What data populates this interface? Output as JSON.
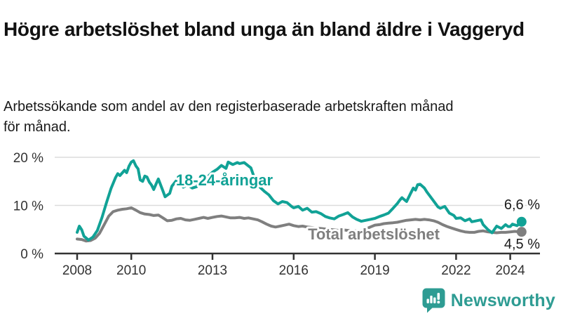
{
  "header": {
    "title": "Högre arbetslöshet bland unga än bland äldre i Vaggeryd",
    "subtitle": "Arbetssökande som andel av den registerbaserade arbetskraften månad för månad."
  },
  "footer": {
    "brand": "Newsworthy"
  },
  "colors": {
    "accent_teal": "#11a296",
    "series_gray": "#7f7f7f",
    "axis_text": "#333333",
    "gridline": "#dcdcdc",
    "axis_line": "#333333",
    "value_label_text": "#1a1a1a",
    "logo_teal": "#2e9c93"
  },
  "chart_data": {
    "type": "line",
    "title": "Högre arbetslöshet bland unga än bland äldre i Vaggeryd",
    "subtitle": "Arbetssökande som andel av den registerbaserade arbetskraften månad för månad.",
    "xlabel": "",
    "ylabel": "",
    "ylim": [
      0,
      20
    ],
    "xlim": [
      2007.2,
      2025.2
    ],
    "grid": true,
    "legend_position": "inline-labels",
    "y_ticks": [
      {
        "value": 0,
        "label": "0 %"
      },
      {
        "value": 10,
        "label": "10 %"
      },
      {
        "value": 20,
        "label": "20 %"
      }
    ],
    "x_ticks": [
      {
        "value": 2008,
        "label": "2008"
      },
      {
        "value": 2010,
        "label": "2010"
      },
      {
        "value": 2013,
        "label": "2013"
      },
      {
        "value": 2016,
        "label": "2016"
      },
      {
        "value": 2019,
        "label": "2019"
      },
      {
        "value": 2022,
        "label": "2022"
      },
      {
        "value": 2024,
        "label": "2024"
      }
    ],
    "annotations": [
      {
        "text": "18-24-åringar",
        "x": 2013.44,
        "y": 15.3,
        "color": "#11a296"
      },
      {
        "text": "Total arbetslöshet",
        "x": 2018.96,
        "y": 4.1,
        "color": "#7f7f7f"
      }
    ],
    "series": [
      {
        "name": "Total arbetslöshet",
        "color": "#7f7f7f",
        "end_value_label": "4,5 %",
        "end_label_side": "below",
        "points": [
          [
            2008.0,
            3.0
          ],
          [
            2008.17,
            2.9
          ],
          [
            2008.33,
            2.6
          ],
          [
            2008.5,
            2.7
          ],
          [
            2008.67,
            3.2
          ],
          [
            2008.83,
            4.2
          ],
          [
            2009.0,
            6.0
          ],
          [
            2009.17,
            7.8
          ],
          [
            2009.33,
            8.7
          ],
          [
            2009.5,
            9.0
          ],
          [
            2009.67,
            9.2
          ],
          [
            2009.83,
            9.3
          ],
          [
            2010.0,
            9.5
          ],
          [
            2010.17,
            9.0
          ],
          [
            2010.33,
            8.5
          ],
          [
            2010.5,
            8.2
          ],
          [
            2010.67,
            8.1
          ],
          [
            2010.83,
            7.9
          ],
          [
            2011.0,
            8.0
          ],
          [
            2011.17,
            7.4
          ],
          [
            2011.33,
            6.8
          ],
          [
            2011.5,
            6.9
          ],
          [
            2011.67,
            7.2
          ],
          [
            2011.83,
            7.3
          ],
          [
            2012.0,
            7.0
          ],
          [
            2012.17,
            6.9
          ],
          [
            2012.33,
            7.1
          ],
          [
            2012.5,
            7.3
          ],
          [
            2012.67,
            7.5
          ],
          [
            2012.83,
            7.3
          ],
          [
            2013.0,
            7.5
          ],
          [
            2013.17,
            7.7
          ],
          [
            2013.33,
            7.8
          ],
          [
            2013.5,
            7.6
          ],
          [
            2013.67,
            7.4
          ],
          [
            2013.83,
            7.4
          ],
          [
            2014.0,
            7.5
          ],
          [
            2014.17,
            7.3
          ],
          [
            2014.33,
            7.4
          ],
          [
            2014.5,
            7.2
          ],
          [
            2014.67,
            7.0
          ],
          [
            2014.83,
            6.6
          ],
          [
            2015.0,
            6.1
          ],
          [
            2015.17,
            5.7
          ],
          [
            2015.33,
            5.5
          ],
          [
            2015.5,
            5.7
          ],
          [
            2015.67,
            5.9
          ],
          [
            2015.83,
            6.1
          ],
          [
            2016.0,
            5.8
          ],
          [
            2016.17,
            5.6
          ],
          [
            2016.33,
            5.7
          ],
          [
            2016.5,
            5.5
          ],
          [
            2016.67,
            5.4
          ],
          [
            2016.83,
            5.3
          ],
          [
            2017.0,
            5.2
          ],
          [
            2017.17,
            5.1
          ],
          [
            2017.33,
            5.0
          ],
          [
            2017.5,
            4.9
          ],
          [
            2017.67,
            4.8
          ],
          [
            2017.83,
            4.9
          ],
          [
            2018.0,
            4.8
          ],
          [
            2018.17,
            4.7
          ],
          [
            2018.33,
            4.7
          ],
          [
            2018.5,
            4.8
          ],
          [
            2018.67,
            5.1
          ],
          [
            2018.83,
            5.5
          ],
          [
            2019.0,
            5.9
          ],
          [
            2019.17,
            6.0
          ],
          [
            2019.33,
            6.2
          ],
          [
            2019.5,
            6.3
          ],
          [
            2019.67,
            6.4
          ],
          [
            2019.83,
            6.5
          ],
          [
            2020.0,
            6.7
          ],
          [
            2020.17,
            6.9
          ],
          [
            2020.33,
            7.0
          ],
          [
            2020.5,
            7.1
          ],
          [
            2020.67,
            7.0
          ],
          [
            2020.83,
            7.1
          ],
          [
            2021.0,
            7.0
          ],
          [
            2021.17,
            6.8
          ],
          [
            2021.33,
            6.5
          ],
          [
            2021.5,
            6.0
          ],
          [
            2021.67,
            5.6
          ],
          [
            2021.83,
            5.3
          ],
          [
            2022.0,
            5.0
          ],
          [
            2022.17,
            4.7
          ],
          [
            2022.33,
            4.5
          ],
          [
            2022.5,
            4.4
          ],
          [
            2022.67,
            4.4
          ],
          [
            2022.83,
            4.6
          ],
          [
            2023.0,
            4.7
          ],
          [
            2023.17,
            4.5
          ],
          [
            2023.33,
            4.4
          ],
          [
            2023.5,
            4.3
          ],
          [
            2023.67,
            4.4
          ],
          [
            2023.83,
            4.4
          ],
          [
            2024.0,
            4.5
          ],
          [
            2024.17,
            4.6
          ],
          [
            2024.33,
            4.5
          ],
          [
            2024.42,
            4.5
          ]
        ]
      },
      {
        "name": "18-24-åringar",
        "color": "#11a296",
        "end_value_label": "6,6 %",
        "end_label_side": "above",
        "points": [
          [
            2008.0,
            4.4
          ],
          [
            2008.08,
            5.7
          ],
          [
            2008.17,
            4.9
          ],
          [
            2008.25,
            3.6
          ],
          [
            2008.42,
            2.8
          ],
          [
            2008.58,
            3.4
          ],
          [
            2008.75,
            4.8
          ],
          [
            2008.92,
            7.5
          ],
          [
            2009.08,
            10.5
          ],
          [
            2009.25,
            13.5
          ],
          [
            2009.42,
            15.8
          ],
          [
            2009.5,
            16.6
          ],
          [
            2009.58,
            16.2
          ],
          [
            2009.75,
            17.3
          ],
          [
            2009.83,
            16.8
          ],
          [
            2009.92,
            18.2
          ],
          [
            2010.0,
            19.0
          ],
          [
            2010.08,
            19.3
          ],
          [
            2010.17,
            18.2
          ],
          [
            2010.25,
            17.6
          ],
          [
            2010.33,
            15.3
          ],
          [
            2010.42,
            15.0
          ],
          [
            2010.5,
            16.1
          ],
          [
            2010.58,
            15.9
          ],
          [
            2010.67,
            14.8
          ],
          [
            2010.75,
            14.2
          ],
          [
            2010.83,
            13.3
          ],
          [
            2010.92,
            14.5
          ],
          [
            2011.0,
            15.5
          ],
          [
            2011.17,
            13.0
          ],
          [
            2011.25,
            11.8
          ],
          [
            2011.42,
            12.5
          ],
          [
            2011.5,
            14.0
          ],
          [
            2011.67,
            15.2
          ],
          [
            2011.83,
            14.4
          ],
          [
            2011.92,
            13.8
          ],
          [
            2012.08,
            14.3
          ],
          [
            2012.25,
            13.6
          ],
          [
            2012.42,
            13.9
          ],
          [
            2012.5,
            14.8
          ],
          [
            2012.67,
            15.3
          ],
          [
            2012.83,
            16.0
          ],
          [
            2013.0,
            16.9
          ],
          [
            2013.17,
            17.5
          ],
          [
            2013.33,
            18.3
          ],
          [
            2013.5,
            17.7
          ],
          [
            2013.58,
            19.0
          ],
          [
            2013.75,
            18.5
          ],
          [
            2013.92,
            18.9
          ],
          [
            2014.0,
            18.7
          ],
          [
            2014.17,
            18.9
          ],
          [
            2014.33,
            18.2
          ],
          [
            2014.42,
            17.8
          ],
          [
            2014.58,
            15.2
          ],
          [
            2014.75,
            13.8
          ],
          [
            2014.92,
            12.9
          ],
          [
            2015.08,
            12.2
          ],
          [
            2015.25,
            11.0
          ],
          [
            2015.42,
            10.3
          ],
          [
            2015.58,
            10.8
          ],
          [
            2015.75,
            10.6
          ],
          [
            2015.92,
            9.8
          ],
          [
            2016.0,
            9.5
          ],
          [
            2016.17,
            9.8
          ],
          [
            2016.33,
            9.0
          ],
          [
            2016.5,
            9.4
          ],
          [
            2016.67,
            8.6
          ],
          [
            2016.83,
            8.7
          ],
          [
            2017.0,
            8.3
          ],
          [
            2017.17,
            7.7
          ],
          [
            2017.33,
            7.4
          ],
          [
            2017.5,
            7.2
          ],
          [
            2017.67,
            7.8
          ],
          [
            2017.83,
            8.1
          ],
          [
            2018.0,
            8.5
          ],
          [
            2018.17,
            7.6
          ],
          [
            2018.33,
            7.1
          ],
          [
            2018.5,
            6.7
          ],
          [
            2018.67,
            6.9
          ],
          [
            2018.83,
            7.1
          ],
          [
            2019.0,
            7.3
          ],
          [
            2019.17,
            7.7
          ],
          [
            2019.33,
            8.0
          ],
          [
            2019.5,
            8.4
          ],
          [
            2019.67,
            9.4
          ],
          [
            2019.83,
            10.4
          ],
          [
            2019.92,
            11.1
          ],
          [
            2020.0,
            11.6
          ],
          [
            2020.17,
            10.8
          ],
          [
            2020.33,
            12.6
          ],
          [
            2020.42,
            13.6
          ],
          [
            2020.5,
            13.2
          ],
          [
            2020.58,
            14.3
          ],
          [
            2020.67,
            14.4
          ],
          [
            2020.83,
            13.6
          ],
          [
            2020.92,
            12.8
          ],
          [
            2021.0,
            12.2
          ],
          [
            2021.17,
            10.9
          ],
          [
            2021.33,
            9.7
          ],
          [
            2021.42,
            9.4
          ],
          [
            2021.58,
            9.8
          ],
          [
            2021.75,
            8.4
          ],
          [
            2021.92,
            7.9
          ],
          [
            2022.0,
            7.3
          ],
          [
            2022.17,
            7.4
          ],
          [
            2022.33,
            6.8
          ],
          [
            2022.5,
            7.2
          ],
          [
            2022.58,
            6.6
          ],
          [
            2022.75,
            6.8
          ],
          [
            2022.92,
            7.0
          ],
          [
            2023.0,
            6.0
          ],
          [
            2023.17,
            5.0
          ],
          [
            2023.33,
            4.3
          ],
          [
            2023.5,
            5.7
          ],
          [
            2023.67,
            5.2
          ],
          [
            2023.83,
            6.0
          ],
          [
            2023.92,
            5.6
          ],
          [
            2024.0,
            5.6
          ],
          [
            2024.08,
            6.1
          ],
          [
            2024.25,
            5.8
          ],
          [
            2024.42,
            6.6
          ]
        ]
      }
    ]
  }
}
